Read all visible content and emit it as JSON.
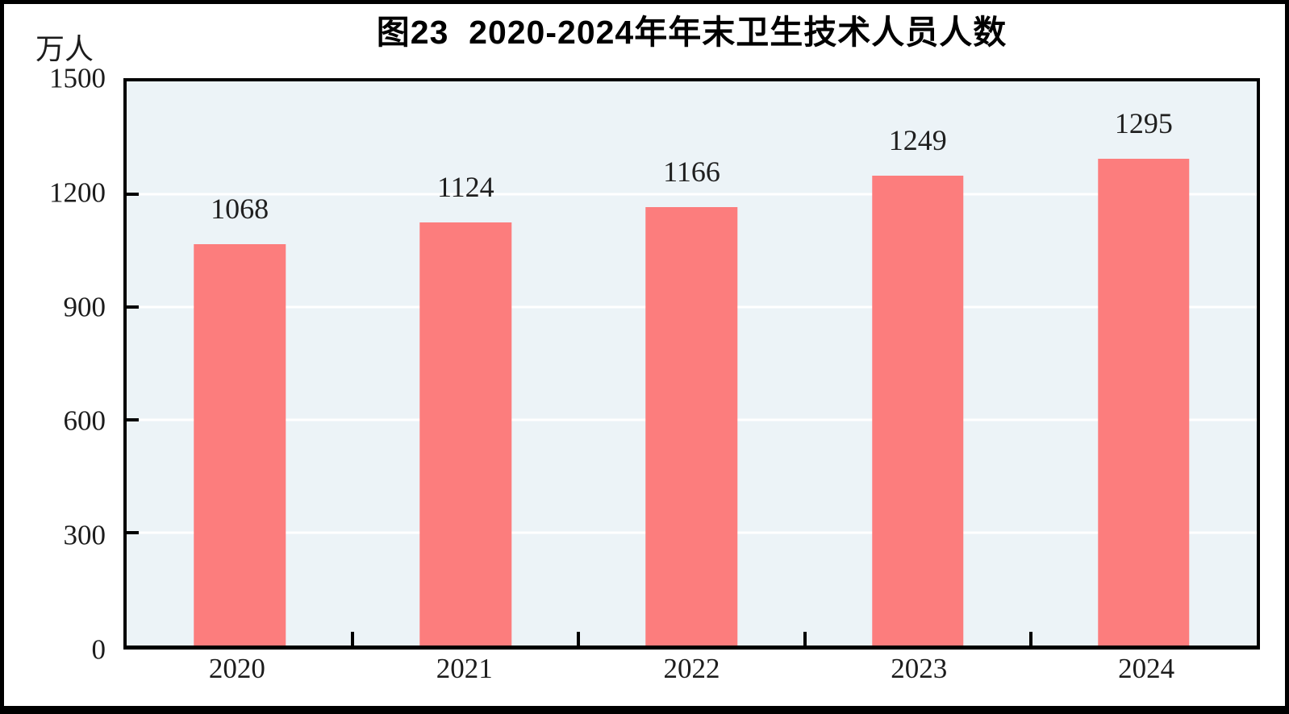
{
  "chart_data": {
    "type": "bar",
    "title": "图23  2020-2024年年末卫生技术人员人数",
    "unit_label": "万人",
    "categories": [
      "2020",
      "2021",
      "2022",
      "2023",
      "2024"
    ],
    "values": [
      1068,
      1124,
      1166,
      1249,
      1295
    ],
    "xlabel": "",
    "ylabel": "万人",
    "ylim": [
      0,
      1500
    ],
    "yticks": [
      0,
      300,
      600,
      900,
      1200,
      1500
    ],
    "grid": "horizontal",
    "legend_position": "none",
    "bar_color": "#FC7D7D",
    "plot_bg_color": "#ECF3F7",
    "grid_color": "#FFFFFF",
    "axis_color": "#000000",
    "text_color": "#1C1C1C"
  }
}
